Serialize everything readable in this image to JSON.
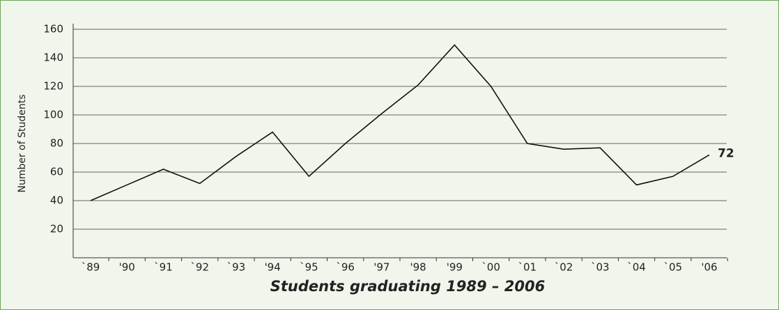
{
  "chart_data": {
    "type": "line",
    "title": "Students graduating 1989 – 2006",
    "y_label": "Number of Students",
    "categories": [
      "`89",
      "'90",
      "`91",
      "`92",
      "`93",
      "'94",
      "`95",
      "`96",
      "'97",
      "'98",
      "'99",
      "`00",
      "`01",
      "`02",
      "`03",
      "`04",
      "`05",
      "'06"
    ],
    "series": [
      {
        "name": "Students",
        "color": "#111111",
        "values": [
          40,
          51,
          62,
          52,
          71,
          88,
          57,
          80,
          101,
          121,
          149,
          120,
          80,
          76,
          77,
          51,
          57,
          72
        ]
      }
    ],
    "ylim": [
      0,
      160
    ],
    "yticks": [
      20,
      40,
      60,
      80,
      100,
      120,
      140,
      160
    ],
    "grid": true
  }
}
